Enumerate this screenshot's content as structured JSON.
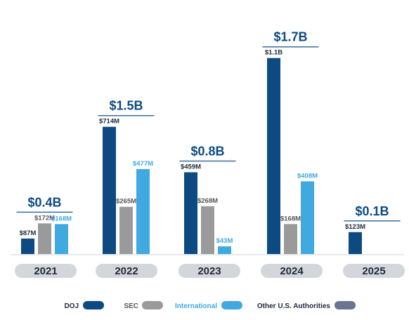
{
  "chart_data": {
    "type": "bar",
    "categories": [
      "2021",
      "2022",
      "2023",
      "2024",
      "2025"
    ],
    "series": [
      {
        "name": "DOJ",
        "color": "#0d4a82",
        "values": [
          87,
          714,
          459,
          1100,
          123
        ],
        "labels": [
          "$87M",
          "$714M",
          "$459M",
          "$1.1B",
          "$123M"
        ]
      },
      {
        "name": "SEC",
        "color": "#9a9a9a",
        "values": [
          172,
          265,
          268,
          168,
          null
        ],
        "labels": [
          "$172M",
          "$265M",
          "$268M",
          "$168M",
          ""
        ]
      },
      {
        "name": "International",
        "color": "#3fa9e0",
        "values": [
          168,
          477,
          43,
          408,
          null
        ],
        "labels": [
          "$168M",
          "$477M",
          "$43M",
          "$408M",
          ""
        ]
      },
      {
        "name": "Other U.S. Authorities",
        "color": "#6b7590",
        "values": [
          null,
          null,
          null,
          null,
          null
        ],
        "labels": [
          "",
          "",
          "",
          "",
          ""
        ]
      }
    ],
    "totals": [
      "$0.4B",
      "$1.5B",
      "$0.8B",
      "$1.7B",
      "$0.1B"
    ],
    "unit": "$M",
    "ylim": [
      0,
      1150
    ],
    "grid": false,
    "legend_position": "bottom"
  },
  "colors": {
    "total_text": "#0d4a82",
    "underline": "#3b6ea0",
    "baseline": "#cfd6dd",
    "year_pill": "#d3d7db",
    "label_dark": "#1f2a3a",
    "label_gray": "#555555",
    "label_blue": "#3fa9e0"
  }
}
